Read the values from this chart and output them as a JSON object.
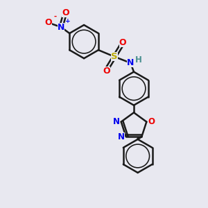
{
  "bg_color": "#e8e8f0",
  "bond_color": "#1a1a1a",
  "bond_width": 1.8,
  "colors": {
    "N": "#0000ee",
    "O": "#ee0000",
    "S": "#bbaa00",
    "H": "#4a9090",
    "C": "#1a1a1a"
  },
  "font_size": 8.5,
  "figsize": [
    3.0,
    3.0
  ],
  "dpi": 100,
  "xlim": [
    -3.5,
    3.5
  ],
  "ylim": [
    -4.5,
    4.8
  ]
}
